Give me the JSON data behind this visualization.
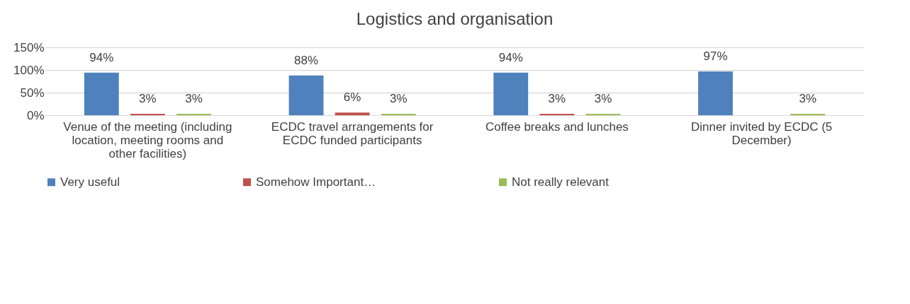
{
  "chart_data": {
    "type": "bar",
    "title": "Logistics and organisation",
    "categories": [
      "Venue of the meeting (including location, meeting rooms and other facilities)",
      "ECDC travel arrangements for ECDC funded participants",
      "Coffee breaks and lunches",
      "Dinner invited by ECDC (5 December)"
    ],
    "series": [
      {
        "name": "Very useful",
        "color": "#4f81bd",
        "values": [
          94,
          88,
          94,
          97
        ],
        "value_labels": [
          "94%",
          "88%",
          "94%",
          "97%"
        ]
      },
      {
        "name": "Somehow Important…",
        "color": "#c0504d",
        "values": [
          3,
          6,
          3,
          null
        ],
        "value_labels": [
          "3%",
          "6%",
          "3%",
          null
        ]
      },
      {
        "name": "Not really relevant",
        "color": "#9bbb59",
        "values": [
          3,
          3,
          3,
          3
        ],
        "value_labels": [
          "3%",
          "3%",
          "3%",
          "3%"
        ]
      }
    ],
    "ylim": [
      0,
      150
    ],
    "yticks": [
      {
        "value": 0,
        "label": "0%"
      },
      {
        "value": 50,
        "label": "50%"
      },
      {
        "value": 100,
        "label": "100%"
      },
      {
        "value": 150,
        "label": "150%"
      }
    ],
    "grid": "y",
    "legend": "bottom"
  }
}
